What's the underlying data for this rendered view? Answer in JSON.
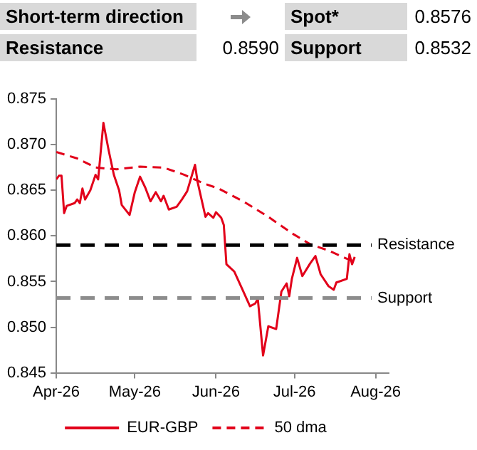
{
  "chart_data": {
    "type": "line",
    "annotations": [
      "Short-term direction",
      "Spot*",
      "0.8576",
      "Resistance",
      "0.8590",
      "Support",
      "0.8532"
    ],
    "xlim": [
      "2026-04-01",
      "2026-08-06"
    ],
    "xticks": [
      {
        "value": "2026-04-01",
        "label": "Apr-26"
      },
      {
        "value": "2026-05-01",
        "label": "May-26"
      },
      {
        "value": "2026-06-01",
        "label": "Jun-26"
      },
      {
        "value": "2026-07-01",
        "label": "Jul-26"
      },
      {
        "value": "2026-08-01",
        "label": "Aug-26"
      }
    ],
    "ylim": [
      0.845,
      0.875
    ],
    "yticks": [
      0.845,
      {
        "value": 0.85,
        "label": "0.850"
      },
      0.855,
      {
        "value": 0.86,
        "label": "0.860"
      },
      0.865,
      {
        "value": 0.87,
        "label": "0.870"
      },
      0.875
    ],
    "legend": "bottom",
    "series": [
      {
        "name": "EUR-GBP",
        "color": "#e2001a",
        "line_style": "solid",
        "x": [
          "2026-04-01",
          "2026-04-02",
          "2026-04-03",
          "2026-04-04",
          "2026-04-05",
          "2026-04-08",
          "2026-04-09",
          "2026-04-10",
          "2026-04-11",
          "2026-04-12",
          "2026-04-14",
          "2026-04-16",
          "2026-04-17",
          "2026-04-19",
          "2026-04-21",
          "2026-04-23",
          "2026-04-25",
          "2026-04-26",
          "2026-04-29",
          "2026-05-01",
          "2026-05-03",
          "2026-05-05",
          "2026-05-07",
          "2026-05-09",
          "2026-05-11",
          "2026-05-12",
          "2026-05-14",
          "2026-05-17",
          "2026-05-19",
          "2026-05-21",
          "2026-05-24",
          "2026-05-25",
          "2026-05-28",
          "2026-05-29",
          "2026-05-31",
          "2026-06-01",
          "2026-06-03",
          "2026-06-04",
          "2026-06-05",
          "2026-06-08",
          "2026-06-11",
          "2026-06-14",
          "2026-06-16",
          "2026-06-17",
          "2026-06-19",
          "2026-06-21",
          "2026-06-24",
          "2026-06-26",
          "2026-06-28",
          "2026-06-29",
          "2026-06-30",
          "2026-07-02",
          "2026-07-04",
          "2026-07-07",
          "2026-07-09",
          "2026-07-11",
          "2026-07-14",
          "2026-07-16",
          "2026-07-17",
          "2026-07-21",
          "2026-07-22",
          "2026-07-23",
          "2026-07-24"
        ],
        "values": [
          0.8662,
          0.8666,
          0.8666,
          0.8625,
          0.8633,
          0.8636,
          0.864,
          0.8636,
          0.8652,
          0.864,
          0.865,
          0.8667,
          0.8662,
          0.8724,
          0.8694,
          0.8667,
          0.865,
          0.8634,
          0.8623,
          0.8648,
          0.8665,
          0.8653,
          0.8638,
          0.8648,
          0.8638,
          0.8644,
          0.8629,
          0.8632,
          0.864,
          0.8649,
          0.8678,
          0.8659,
          0.8621,
          0.8625,
          0.862,
          0.8626,
          0.862,
          0.8612,
          0.8569,
          0.8561,
          0.8542,
          0.8523,
          0.8526,
          0.8531,
          0.8469,
          0.8501,
          0.8498,
          0.8539,
          0.8548,
          0.8534,
          0.8553,
          0.8576,
          0.8556,
          0.857,
          0.8578,
          0.8558,
          0.8545,
          0.8541,
          0.8549,
          0.8553,
          0.858,
          0.8569,
          0.8577
        ]
      },
      {
        "name": "50 dma",
        "color": "#e2001a",
        "line_style": "dashed",
        "x": [
          "2026-04-01",
          "2026-04-09",
          "2026-04-16",
          "2026-04-24",
          "2026-05-03",
          "2026-05-12",
          "2026-05-20",
          "2026-05-27",
          "2026-06-02",
          "2026-06-12",
          "2026-06-21",
          "2026-06-30",
          "2026-07-07",
          "2026-07-14",
          "2026-07-21",
          "2026-07-24"
        ],
        "values": [
          0.8692,
          0.8685,
          0.8675,
          0.8673,
          0.8676,
          0.8675,
          0.8667,
          0.8658,
          0.8652,
          0.8637,
          0.8621,
          0.8603,
          0.8591,
          0.8584,
          0.8575,
          0.8572
        ]
      }
    ],
    "ref_lines": [
      {
        "axis": "y",
        "value": 0.859,
        "label": "Resistance",
        "color": "#000000",
        "line_style": "dashed"
      },
      {
        "axis": "y",
        "value": 0.8532,
        "label": "Support",
        "color": "#8c8c8c",
        "line_style": "dashed"
      }
    ]
  }
}
